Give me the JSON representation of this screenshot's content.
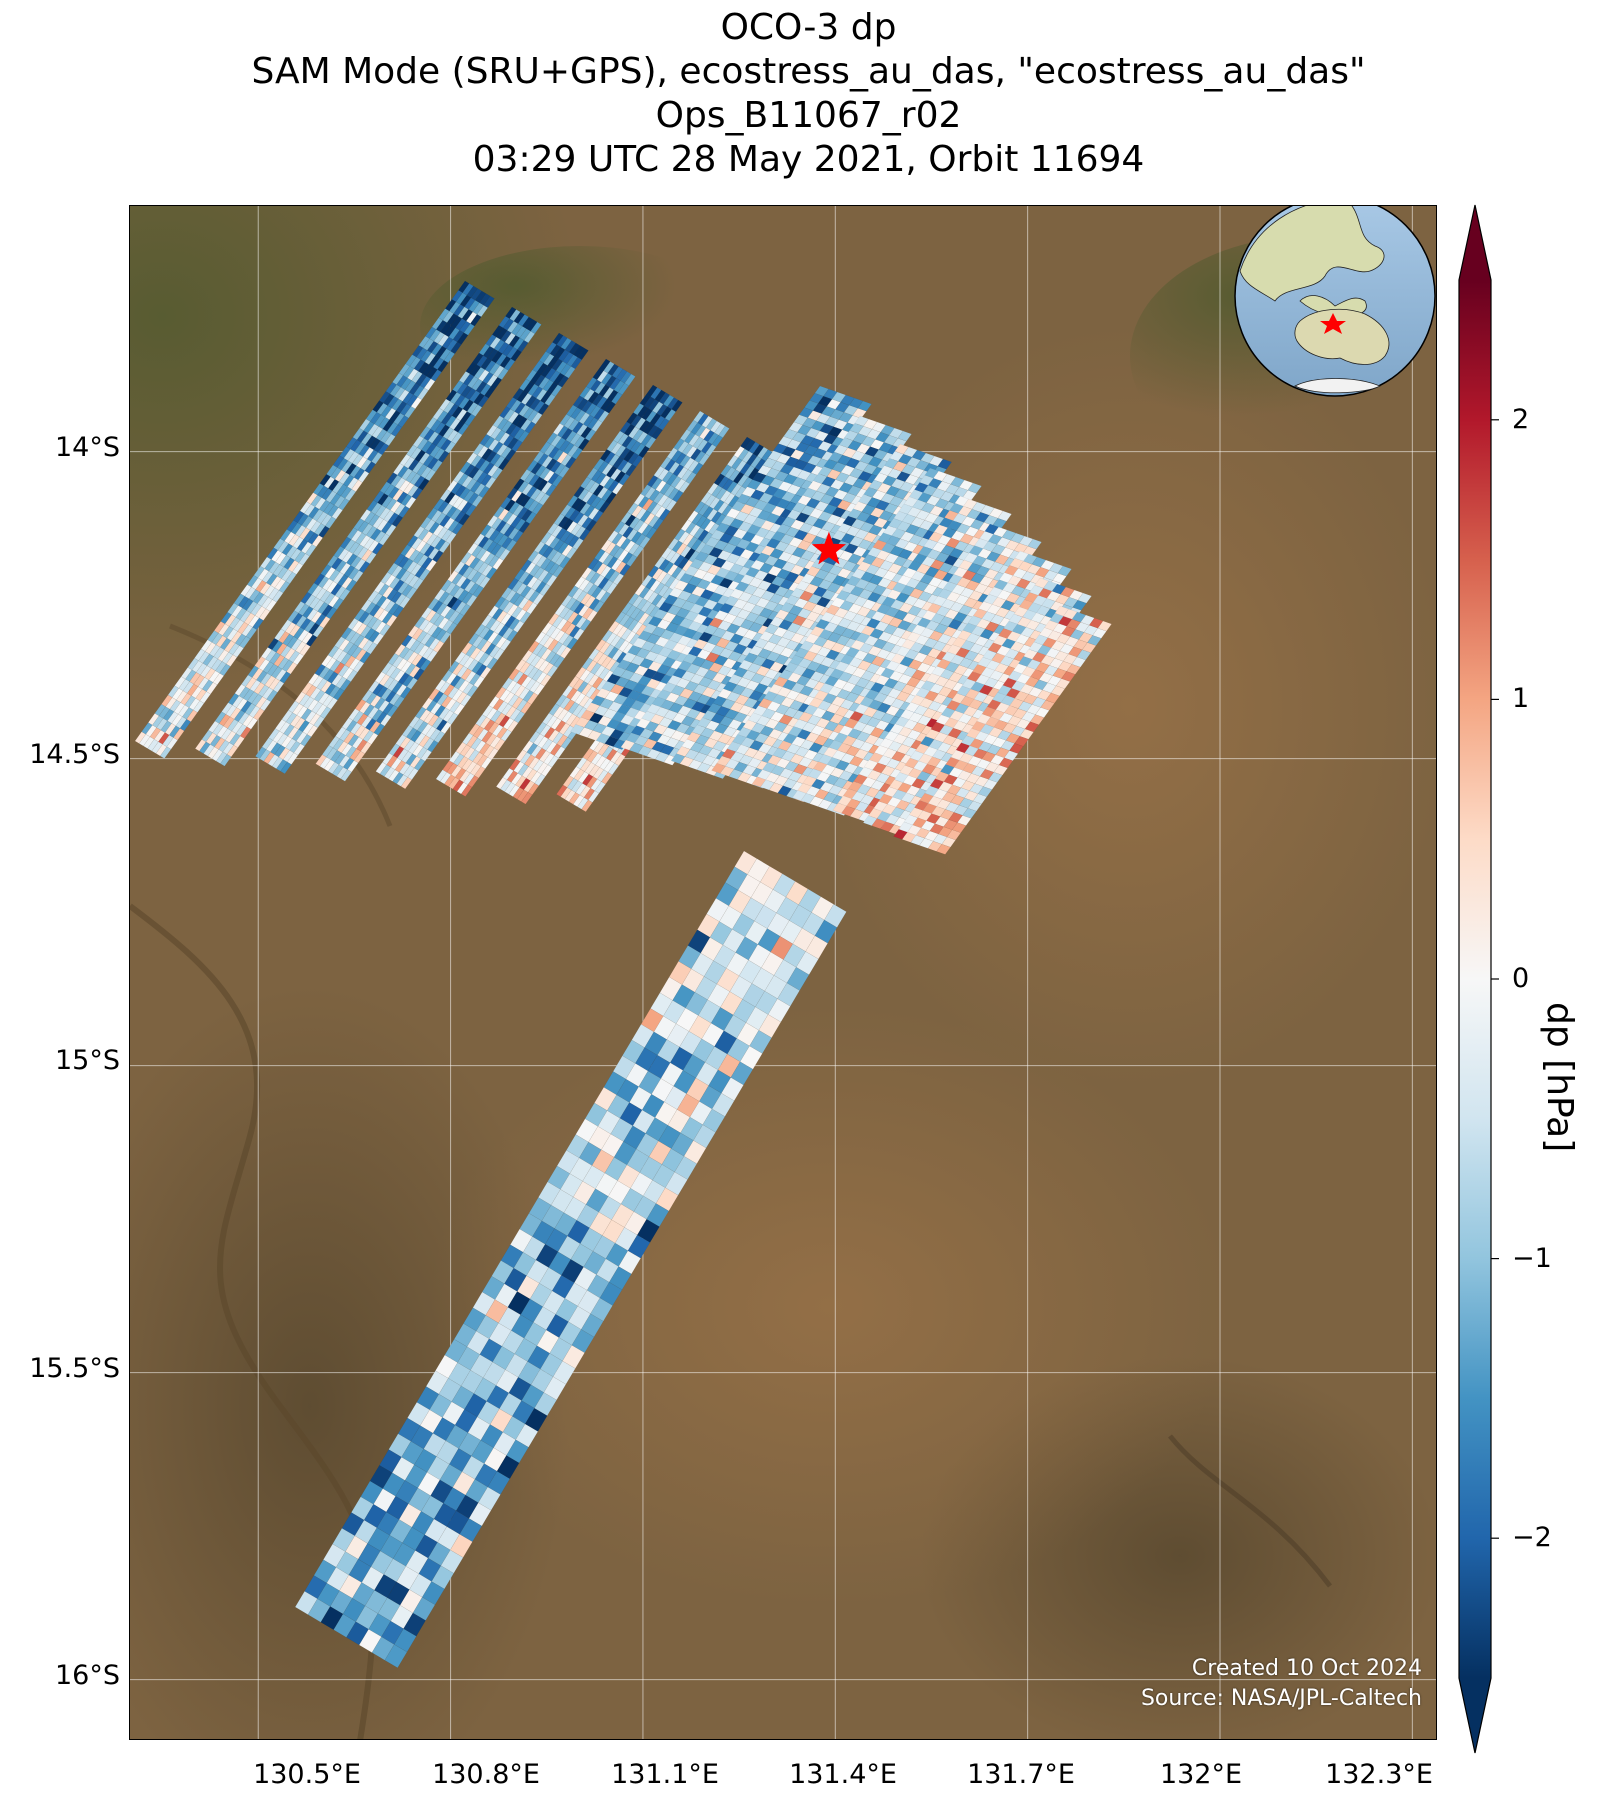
{
  "title": {
    "line1": "OCO-3 dp",
    "line2": "SAM Mode (SRU+GPS), ecostress_au_das, \"ecostress_au_das\"",
    "line3": "Ops_B11067_r02",
    "line4": "03:29 UTC 28 May 2021, Orbit 11694"
  },
  "map": {
    "lon_range": [
      130.3,
      132.34
    ],
    "lat_range": [
      -16.1,
      -13.6
    ],
    "lat_ticks": [
      {
        "value": -14.0,
        "label": "14°S"
      },
      {
        "value": -14.5,
        "label": "14.5°S"
      },
      {
        "value": -15.0,
        "label": "15°S"
      },
      {
        "value": -15.5,
        "label": "15.5°S"
      },
      {
        "value": -16.0,
        "label": "16°S"
      }
    ],
    "lon_ticks": [
      {
        "value": 130.5,
        "label": "130.5°E"
      },
      {
        "value": 130.8,
        "label": "130.8°E"
      },
      {
        "value": 131.1,
        "label": "131.1°E"
      },
      {
        "value": 131.4,
        "label": "131.4°E"
      },
      {
        "value": 131.7,
        "label": "131.7°E"
      },
      {
        "value": 132.0,
        "label": "132°E"
      },
      {
        "value": 132.3,
        "label": "132.3°E"
      }
    ],
    "target": {
      "lon": 131.39,
      "lat": -14.16,
      "color": "#ff0000"
    },
    "gridlines": true
  },
  "colorbar": {
    "label": "dp [hPa]",
    "vmin": -2.5,
    "vmax": 2.5,
    "extend": "both",
    "cmap": "RdBu_r",
    "ticks": [
      {
        "value": 2,
        "label": "2"
      },
      {
        "value": 1,
        "label": "1"
      },
      {
        "value": 0,
        "label": "0"
      },
      {
        "value": -1,
        "label": "−1"
      },
      {
        "value": -2,
        "label": "−2"
      }
    ]
  },
  "credits": {
    "created": "Created 10 Oct 2024",
    "source": "Source: NASA/JPL-Caltech"
  },
  "inset_globe": {
    "marker_color": "#ff0000"
  }
}
